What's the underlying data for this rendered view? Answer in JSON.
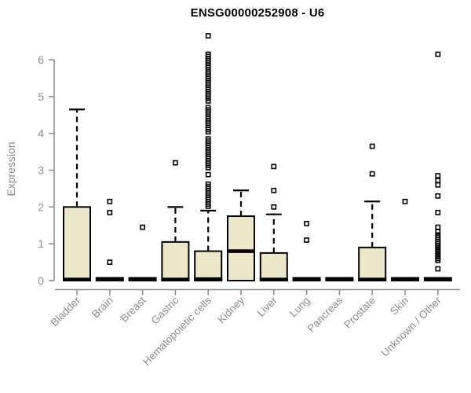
{
  "chart_data": {
    "type": "boxplot",
    "title": "ENSG00000252908 - U6",
    "xlabel": "",
    "ylabel": "Expression",
    "ylim": [
      0,
      6
    ],
    "yticks": [
      0,
      1,
      2,
      3,
      4,
      5,
      6
    ],
    "grid": false,
    "legend": false,
    "categories": [
      "Bladder",
      "Brain",
      "Breast",
      "Gastric",
      "Hematopoietic cells",
      "Kidney",
      "Liver",
      "Lung",
      "Pancreas",
      "Prostate",
      "Skin",
      "Unknown / Other"
    ],
    "series": [
      {
        "category": "Bladder",
        "whisker_low": 0,
        "q1": 0,
        "median": 0.03,
        "q3": 2.0,
        "whisker_high": 4.65,
        "outliers": []
      },
      {
        "category": "Brain",
        "whisker_low": 0,
        "q1": 0,
        "median": 0,
        "q3": 0,
        "whisker_high": 0,
        "outliers": [
          2.15,
          1.85,
          0.5
        ]
      },
      {
        "category": "Breast",
        "whisker_low": 0,
        "q1": 0,
        "median": 0,
        "q3": 0,
        "whisker_high": 0,
        "outliers": [
          1.45
        ]
      },
      {
        "category": "Gastric",
        "whisker_low": 0,
        "q1": 0,
        "median": 0.03,
        "q3": 1.05,
        "whisker_high": 2.0,
        "outliers": [
          3.2
        ]
      },
      {
        "category": "Hematopoietic cells",
        "whisker_low": 0,
        "q1": 0,
        "median": 0.04,
        "q3": 0.8,
        "whisker_high": 1.9,
        "outliers": [
          6.65,
          6.15,
          6.09,
          6.03,
          5.97,
          5.91,
          5.85,
          5.79,
          5.73,
          5.67,
          5.61,
          5.55,
          5.49,
          5.43,
          5.37,
          5.31,
          5.25,
          5.19,
          5.13,
          5.07,
          5.01,
          4.95,
          4.88,
          4.7,
          4.64,
          4.58,
          4.52,
          4.46,
          4.4,
          4.34,
          4.28,
          4.22,
          4.16,
          4.1,
          4.04,
          3.85,
          3.79,
          3.73,
          3.67,
          3.61,
          3.55,
          3.49,
          3.43,
          3.37,
          3.31,
          3.25,
          3.19,
          3.13,
          3.07,
          2.88,
          2.62,
          2.56,
          2.5,
          2.44,
          2.38,
          2.32,
          2.26,
          2.2,
          2.14,
          2.08,
          2.02
        ]
      },
      {
        "category": "Kidney",
        "whisker_low": 0,
        "q1": 0,
        "median": 0.8,
        "q3": 1.75,
        "whisker_high": 2.45,
        "outliers": []
      },
      {
        "category": "Liver",
        "whisker_low": 0,
        "q1": 0,
        "median": 0.03,
        "q3": 0.75,
        "whisker_high": 1.8,
        "outliers": [
          3.1,
          2.45,
          2.0
        ]
      },
      {
        "category": "Lung",
        "whisker_low": 0,
        "q1": 0,
        "median": 0,
        "q3": 0,
        "whisker_high": 0,
        "outliers": [
          1.55,
          1.1
        ]
      },
      {
        "category": "Pancreas",
        "whisker_low": 0,
        "q1": 0,
        "median": 0,
        "q3": 0,
        "whisker_high": 0,
        "outliers": []
      },
      {
        "category": "Prostate",
        "whisker_low": 0,
        "q1": 0,
        "median": 0.03,
        "q3": 0.9,
        "whisker_high": 2.15,
        "outliers": [
          3.65,
          2.9
        ]
      },
      {
        "category": "Skin",
        "whisker_low": 0,
        "q1": 0,
        "median": 0,
        "q3": 0,
        "whisker_high": 0,
        "outliers": [
          2.15
        ]
      },
      {
        "category": "Unknown / Other",
        "whisker_low": 0,
        "q1": 0,
        "median": 0,
        "q3": 0,
        "whisker_high": 0,
        "outliers": [
          6.15,
          2.85,
          2.72,
          2.6,
          2.3,
          1.85,
          1.45,
          1.33,
          1.24,
          1.18,
          1.12,
          1.06,
          1.0,
          0.95,
          0.9,
          0.85,
          0.8,
          0.75,
          0.7,
          0.65,
          0.6,
          0.55,
          0.32
        ]
      }
    ],
    "colors": {
      "box_fill": "#EDE7CB",
      "box_border": "#000000",
      "median": "#000000",
      "axis": "#8C8C8C",
      "tick_label": "#8C8C8C",
      "title": "#000000",
      "background": "#FFFFFF"
    }
  }
}
